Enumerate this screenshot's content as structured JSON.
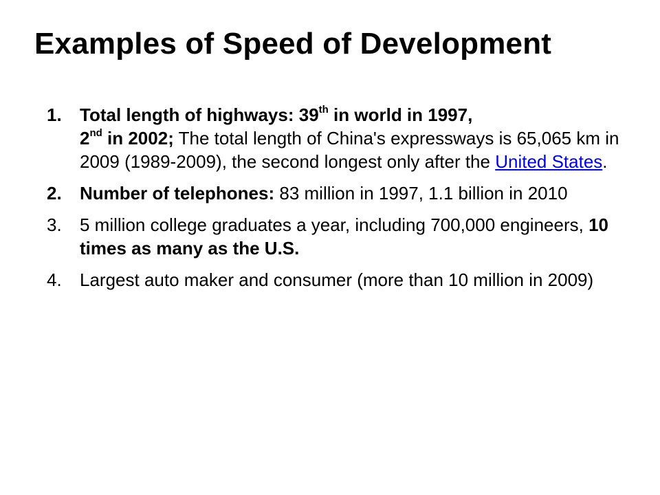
{
  "slide": {
    "title": "Examples of Speed of Development",
    "items": [
      {
        "number": "1.",
        "bold_part1": "Total length of highways: 39",
        "sup1": "th",
        "bold_part2": " in world in 1997,",
        "bold_part3": "2",
        "sup2": "nd",
        "bold_part4": " in 2002;",
        "text_before_link": " The total length of China's expressways is 65,065 km in 2009 (1989-2009), the  second longest only after the ",
        "link_text": "United States",
        "text_after_link": "."
      },
      {
        "number": "2.",
        "bold_label": "Number of telephones:",
        "text": " 83 million in 1997, 1.1 billion in 2010"
      },
      {
        "number": "3.",
        "text": "5 million college graduates a year, including 700,000 engineers,  ",
        "bold_text": "10 times as many as the U.S."
      },
      {
        "number": "4.",
        "text": "Largest auto maker and consumer (more than 10 million in 2009)"
      }
    ],
    "link_color": "#0000ee"
  }
}
